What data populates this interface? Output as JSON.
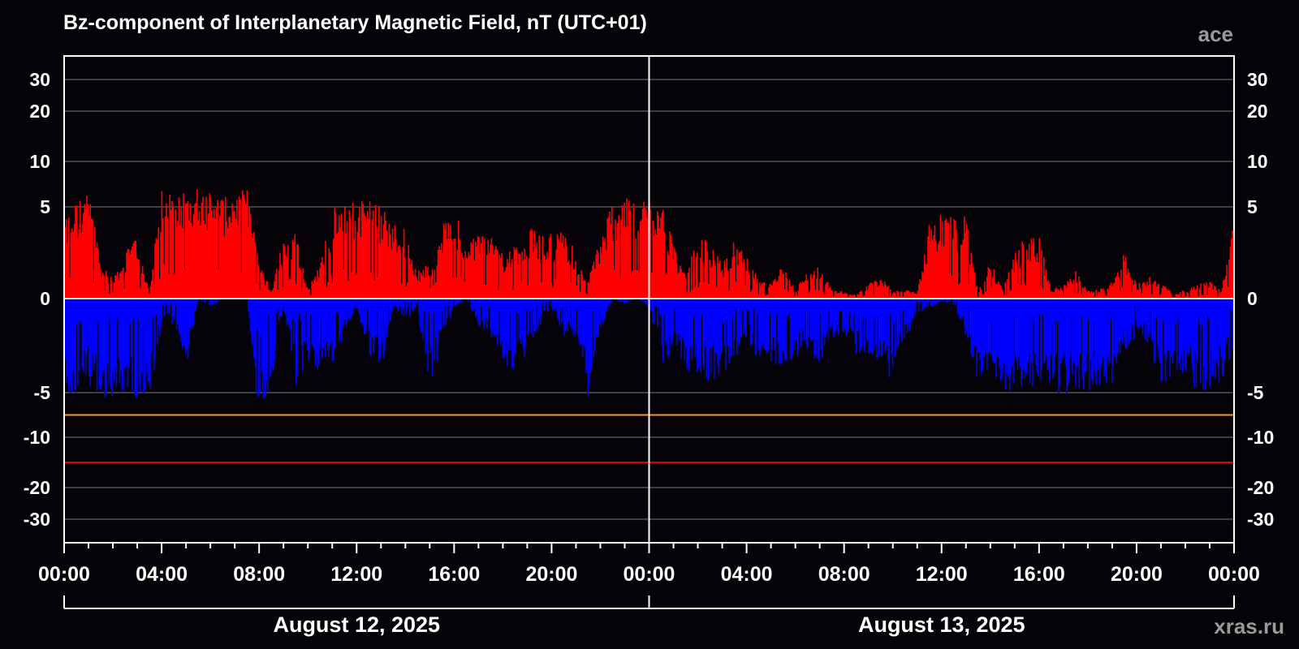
{
  "chart_data": {
    "type": "bar",
    "title": "Bz-component of Interplanetary Magnetic Field, nT (UTC+01)",
    "source_label": "ace",
    "watermark": "xras.ru",
    "y_scale": "nonlinear (compressed beyond ±10)",
    "y_ticks": [
      30,
      20,
      10,
      5,
      0,
      -5,
      -10,
      -20,
      -30
    ],
    "y_tick_labels": [
      "30",
      "20",
      "10",
      "5",
      "0",
      "-5",
      "-10",
      "-20",
      "-30"
    ],
    "x_tick_labels": [
      "00:00",
      "04:00",
      "08:00",
      "12:00",
      "16:00",
      "20:00",
      "00:00",
      "04:00",
      "08:00",
      "12:00",
      "16:00",
      "20:00",
      "00:00"
    ],
    "x_range_hours": [
      0,
      48
    ],
    "date_labels": [
      "August 12, 2025",
      "August 13, 2025"
    ],
    "threshold_lines": [
      {
        "value": -7.5,
        "color": "#ff9900"
      },
      {
        "value": -15,
        "color": "#e00000"
      }
    ],
    "colors": {
      "positive": "#ff0000",
      "negative": "#0000ff",
      "background": "#050308",
      "grid": "#7a7a7a"
    },
    "grid": true,
    "series_envelope": {
      "hours": [
        0,
        0.5,
        1,
        1.5,
        2,
        2.5,
        3,
        3.5,
        4,
        4.5,
        5,
        5.5,
        6,
        6.5,
        7,
        7.5,
        8,
        8.5,
        9,
        9.5,
        10,
        10.5,
        11,
        11.5,
        12,
        12.5,
        13,
        13.5,
        14,
        14.5,
        15,
        15.5,
        16,
        16.5,
        17,
        17.5,
        18,
        18.5,
        19,
        19.5,
        20,
        20.5,
        21,
        21.5,
        22,
        22.5,
        23,
        23.5,
        24,
        24.5,
        25,
        25.5,
        26,
        26.5,
        27,
        27.5,
        28,
        28.5,
        29,
        29.5,
        30,
        30.5,
        31,
        31.5,
        32,
        32.5,
        33,
        33.5,
        34,
        34.5,
        35,
        35.5,
        36,
        36.5,
        37,
        37.5,
        38,
        38.5,
        39,
        39.5,
        40,
        40.5,
        41,
        41.5,
        42,
        42.5,
        43,
        43.5,
        44,
        44.5,
        45,
        45.5,
        46,
        46.5,
        47,
        47.5,
        48
      ],
      "bz_max": [
        4.5,
        5.5,
        6.5,
        2,
        1.2,
        2.5,
        3.5,
        0.3,
        6.8,
        6.5,
        7.0,
        7.2,
        6.5,
        6.0,
        6.5,
        7.0,
        2.0,
        0.5,
        3.5,
        3.8,
        0.5,
        2.0,
        4.8,
        6.0,
        5.5,
        6.2,
        5.0,
        4.5,
        3.8,
        1.5,
        2.0,
        4.0,
        4.8,
        3.5,
        3.8,
        3.5,
        2.5,
        3.0,
        4.0,
        3.5,
        3.6,
        4.0,
        2.5,
        1.0,
        3.5,
        5.5,
        6.0,
        5.5,
        5.8,
        5.8,
        3.2,
        1.2,
        3.5,
        3.0,
        2.0,
        3.2,
        2.5,
        1.0,
        0.8,
        2.0,
        0.5,
        1.5,
        1.8,
        0.5,
        0.4,
        0.2,
        0.8,
        1.2,
        0.5,
        0.5,
        0.3,
        4.2,
        4.8,
        4.5,
        4.5,
        0.3,
        2.2,
        0.5,
        2.5,
        3.5,
        3.5,
        0.5,
        0.8,
        1.5,
        0.5,
        0.6,
        1.0,
        2.5,
        0.8,
        1.2,
        1.0,
        0.3,
        0.5,
        0.8,
        1.0,
        0.5,
        4.5
      ],
      "bz_min": [
        -5.0,
        -5.5,
        -4.5,
        -5.8,
        -5.5,
        -5.0,
        -6.0,
        -6.0,
        -1.2,
        -1.5,
        -4.0,
        0,
        -0.5,
        0,
        0,
        0,
        -7.0,
        -4.5,
        -0.5,
        -5.0,
        -3.5,
        -4.0,
        -3.5,
        -2.0,
        -0.5,
        -3.0,
        -4.0,
        -0.5,
        -1.0,
        -0.8,
        -4.8,
        -2.5,
        -0.5,
        0,
        -1.5,
        -2.0,
        -3.5,
        -4.0,
        -3.0,
        -1.5,
        -0.5,
        -2.0,
        -2.0,
        -5.5,
        -2.0,
        0,
        -0.3,
        0,
        -0.5,
        -3.5,
        -3.0,
        -3.8,
        -4.2,
        -4.5,
        -4.5,
        -3.5,
        -2.0,
        -3.5,
        -3.5,
        -3.5,
        -3.2,
        -2.8,
        -3.5,
        -2.0,
        -2.5,
        -3.0,
        -3.5,
        -3.5,
        -4.5,
        -2.5,
        -0.8,
        -0.5,
        -0.2,
        -0.3,
        -2.0,
        -4.5,
        -4.8,
        -5.0,
        -4.8,
        -5.0,
        -4.5,
        -4.8,
        -5.2,
        -5.0,
        -5.0,
        -4.8,
        -4.5,
        -3.0,
        -2.0,
        -2.5,
        -5.0,
        -4.8,
        -4.5,
        -4.8,
        -5.0,
        -4.5,
        -2.5
      ]
    }
  }
}
